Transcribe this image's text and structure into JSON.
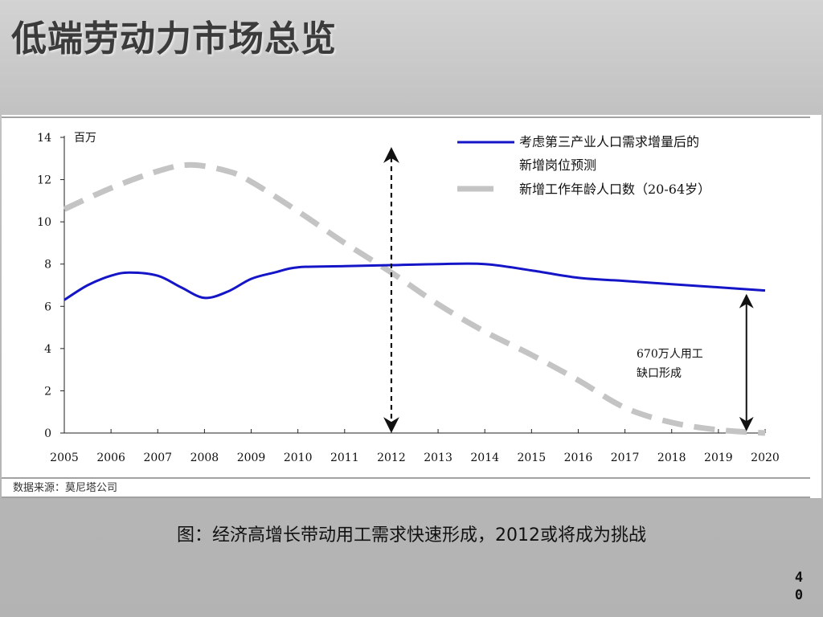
{
  "slide": {
    "title": "低端劳动力市场总览",
    "caption": "图：经济高增长带动用工需求快速形成，2012或将成为挑战",
    "page_number": [
      "4",
      "0"
    ]
  },
  "chart_data": {
    "type": "line",
    "ylabel_unit": "百万",
    "x": [
      2005,
      2006,
      2007,
      2008,
      2009,
      2010,
      2011,
      2012,
      2013,
      2014,
      2015,
      2016,
      2017,
      2018,
      2019,
      2020
    ],
    "x_tick_labels": [
      "2005",
      "2006",
      "2007",
      "2008",
      "2009",
      "2010",
      "2011",
      "2012",
      "2013",
      "2014",
      "2015",
      "2016",
      "2017",
      "2018",
      "2019",
      "2020"
    ],
    "ylim": [
      0,
      14
    ],
    "y_ticks": [
      0,
      2,
      4,
      6,
      8,
      10,
      12,
      14
    ],
    "y_tick_labels": [
      "0",
      "2",
      "4",
      "6",
      "8",
      "10",
      "12",
      "14"
    ],
    "series": [
      {
        "name": "考虑第三产业人口需求增量后的新增岗位预测",
        "legend_lines": [
          "考虑第三产业人口需求增量后的",
          "新增岗位预测"
        ],
        "color": "#1515c8",
        "style": "solid",
        "points": [
          [
            2005,
            6.3
          ],
          [
            2005.5,
            7.0
          ],
          [
            2006,
            7.45
          ],
          [
            2006.4,
            7.6
          ],
          [
            2007,
            7.45
          ],
          [
            2007.5,
            6.9
          ],
          [
            2008,
            6.4
          ],
          [
            2008.5,
            6.7
          ],
          [
            2009,
            7.3
          ],
          [
            2009.5,
            7.6
          ],
          [
            2010,
            7.85
          ],
          [
            2011,
            7.9
          ],
          [
            2012,
            7.95
          ],
          [
            2013,
            8.0
          ],
          [
            2014,
            8.0
          ],
          [
            2015,
            7.7
          ],
          [
            2016,
            7.35
          ],
          [
            2017,
            7.2
          ],
          [
            2018,
            7.05
          ],
          [
            2019,
            6.9
          ],
          [
            2020,
            6.75
          ]
        ]
      },
      {
        "name": "新增工作年龄人口数（20-64岁）",
        "legend_lines": [
          "新增工作年龄人口数（20-64岁）"
        ],
        "color": "#c4c4c4",
        "style": "dashed",
        "points": [
          [
            2005,
            10.6
          ],
          [
            2006,
            11.6
          ],
          [
            2007,
            12.4
          ],
          [
            2007.7,
            12.7
          ],
          [
            2008.5,
            12.4
          ],
          [
            2009,
            11.9
          ],
          [
            2010,
            10.5
          ],
          [
            2011,
            9.0
          ],
          [
            2012,
            7.6
          ],
          [
            2013,
            6.1
          ],
          [
            2014,
            4.8
          ],
          [
            2015,
            3.7
          ],
          [
            2016,
            2.5
          ],
          [
            2017,
            1.2
          ],
          [
            2018,
            0.5
          ],
          [
            2019,
            0.15
          ],
          [
            2020,
            0.0
          ]
        ]
      }
    ],
    "annotations": {
      "gap_label_lines": [
        "670万人用工",
        "缺口形成"
      ],
      "vertical_marker_x": 2012,
      "gap_arrow_x": 2019.6
    },
    "source": "数据来源：莫尼塔公司",
    "legend_placement": "top-right",
    "grid": false
  }
}
